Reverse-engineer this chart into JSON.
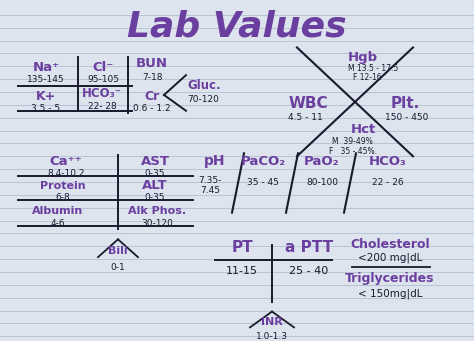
{
  "title": "Lab Values",
  "bg_color": "#dde4ed",
  "line_color": "#b8c4d4",
  "purple": "#6B3FA0",
  "black": "#1a1a2e",
  "p1_na_label": "Na⁺",
  "p1_na_val": "135-145",
  "p1_cl_label": "Cl⁻",
  "p1_cl_val": "95-105",
  "p1_bun_label": "BUN",
  "p1_bun_val": "7-18",
  "p1_k_label": "K+",
  "p1_k_val": "3.5 - 5",
  "p1_hco3_label": "HCO₃⁻",
  "p1_hco3_val": "22- 28",
  "p1_cr_label": "Cr",
  "p1_cr_val": "0.6 - 1.2",
  "p1_gluc_label": "Gluc.",
  "p1_gluc_val": "70-120",
  "p2_hgb_label": "Hgb",
  "p2_hgb_m": "M 13.5 - 17.5",
  "p2_hgb_f": "F 12-16",
  "p2_wbc_label": "WBC",
  "p2_wbc_val": "4.5 - 11",
  "p2_plt_label": "Plt.",
  "p2_plt_val": "150 - 450",
  "p2_hct_label": "Hct",
  "p2_hct_m": "M  39-49%",
  "p2_hct_f": "F   35 - 45%.",
  "p3_ca_label": "Ca⁺⁺",
  "p3_ca_val": "8.4-10.2",
  "p3_ast_label": "AST",
  "p3_ast_val": "0-35",
  "p3_prot_label": "Protein",
  "p3_prot_val": "6-8",
  "p3_alt_label": "ALT",
  "p3_alt_val": "0-35",
  "p3_alb_label": "Albumin",
  "p3_alb_val": "4-6",
  "p3_alk_label": "Alk Phos.",
  "p3_alk_val": "30-120",
  "p3_bili_label": "Bili",
  "p3_bili_val": "0-1",
  "p4_ph_label": "pH",
  "p4_ph_val": "7.35-\n7.45",
  "p4_paco2_label": "PaCO₂",
  "p4_paco2_val": "35 - 45",
  "p4_pao2_label": "PaO₂",
  "p4_pao2_val": "80-100",
  "p4_hco3_label": "HCO₃",
  "p4_hco3_val": "22 - 26",
  "p5_pt_label": "PT",
  "p5_pt_val": "11-15",
  "p5_aptt_label": "a PTT",
  "p5_aptt_val": "25 - 40",
  "p5_inr_label": "INR",
  "p5_inr_val": "1.0-1.3",
  "p6_chol_label": "Cholesterol",
  "p6_chol_val": "<200 mg|dL",
  "p6_trig_label": "Triglycerides",
  "p6_trig_val": "< 150mg|dL"
}
